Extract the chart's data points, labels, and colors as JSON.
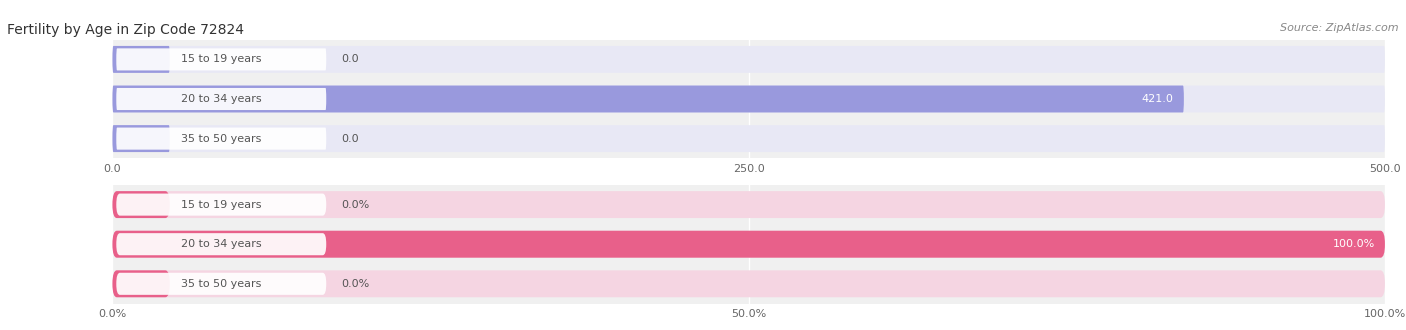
{
  "title": "Fertility by Age in Zip Code 72824",
  "source": "Source: ZipAtlas.com",
  "top_chart": {
    "categories": [
      "15 to 19 years",
      "20 to 34 years",
      "35 to 50 years"
    ],
    "values": [
      0.0,
      421.0,
      0.0
    ],
    "value_labels": [
      "0.0",
      "421.0",
      "0.0"
    ],
    "xlim": [
      0,
      500
    ],
    "xticks": [
      0.0,
      250.0,
      500.0
    ],
    "xticklabels": [
      "0.0",
      "250.0",
      "500.0"
    ],
    "bar_color": "#9999dd",
    "bar_bg_color": "#e8e8f5",
    "label_pill_color": "#ffffff",
    "label_text_color": "#555555"
  },
  "bottom_chart": {
    "categories": [
      "15 to 19 years",
      "20 to 34 years",
      "35 to 50 years"
    ],
    "values": [
      0.0,
      100.0,
      0.0
    ],
    "value_labels": [
      "0.0%",
      "100.0%",
      "0.0%"
    ],
    "xlim": [
      0,
      100
    ],
    "xticks": [
      0.0,
      50.0,
      100.0
    ],
    "xticklabels": [
      "0.0%",
      "50.0%",
      "100.0%"
    ],
    "bar_color": "#e8608a",
    "bar_bg_color": "#f5d5e2",
    "label_pill_color": "#ffffff",
    "label_text_color": "#555555"
  },
  "chart_bg_color": "#f0f0f0",
  "fig_bg_color": "#ffffff",
  "title_fontsize": 10,
  "source_fontsize": 8,
  "label_fontsize": 8,
  "value_fontsize": 8,
  "tick_fontsize": 8
}
